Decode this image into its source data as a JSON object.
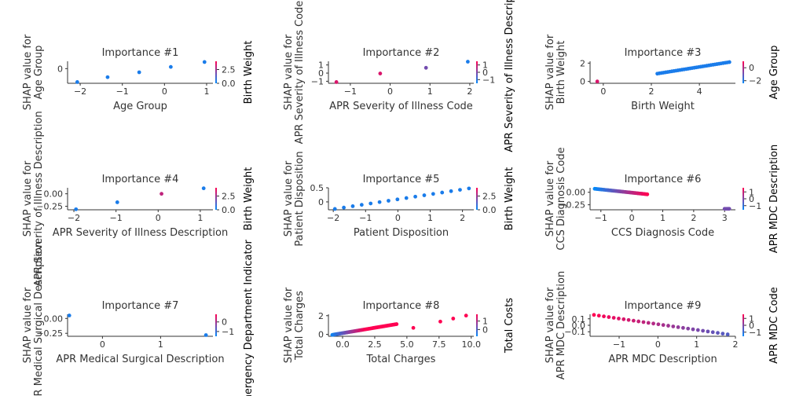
{
  "figure": {
    "colors": {
      "low": "#008afb",
      "high": "#ff0052",
      "axis": "#333333"
    }
  },
  "chart_data": [
    {
      "type": "scatter",
      "title": "Importance #1",
      "xlabel": "Age Group",
      "ylabel": "SHAP value for\nAge Group",
      "xlim": [
        -2.3,
        1.15
      ],
      "ylim": [
        -0.6,
        0.3
      ],
      "xticks": [
        -2,
        -1,
        0,
        1
      ],
      "yticks": [
        0
      ],
      "colorbar": {
        "label": "Birth Weight",
        "ticks": [
          "2.5",
          "0.0"
        ],
        "ticks_y": [
          2.5,
          0.0
        ],
        "range": [
          0.0,
          4.0
        ]
      },
      "points": [
        [
          -2.07,
          -0.55,
          0.1
        ],
        [
          -1.35,
          -0.35,
          0.1
        ],
        [
          -0.6,
          -0.15,
          0.1
        ],
        [
          0.15,
          0.07,
          0.1
        ],
        [
          0.95,
          0.27,
          0.1
        ]
      ]
    },
    {
      "type": "scatter",
      "title": "Importance #2",
      "xlabel": "APR Severity of Illness Code",
      "ylabel": "SHAP value for\nAPR Severity of Illness Code",
      "xlim": [
        -1.55,
        2.1
      ],
      "ylim": [
        -1.25,
        1.45
      ],
      "xticks": [
        -1,
        0,
        1,
        2
      ],
      "yticks": [
        1,
        0,
        -1
      ],
      "colorbar": {
        "label": "APR Severity of Illness Descript",
        "ticks": [
          "1",
          "0",
          "−1"
        ],
        "ticks_y": [
          1,
          0,
          -1
        ],
        "range": [
          -1.5,
          1.5
        ]
      },
      "points": [
        [
          -1.35,
          -1.1,
          0.85
        ],
        [
          -0.25,
          -0.05,
          0.85
        ],
        [
          0.9,
          0.65,
          0.45
        ],
        [
          1.95,
          1.4,
          0.1
        ]
      ]
    },
    {
      "type": "scatter",
      "title": "Importance #3",
      "xlabel": "Birth Weight",
      "ylabel": "SHAP value for\nBirth Weight",
      "xlim": [
        -0.55,
        5.5
      ],
      "ylim": [
        -0.2,
        2.2
      ],
      "xticks": [
        0,
        2,
        4
      ],
      "yticks": [
        2,
        0
      ],
      "colorbar": {
        "label": "Age Group",
        "ticks": [
          "0",
          "−2"
        ],
        "ticks_y": [
          0,
          -2
        ],
        "range": [
          -2.4,
          1.0
        ]
      },
      "points": "birthweight-line"
    },
    {
      "type": "scatter",
      "title": "Importance #4",
      "xlabel": "APR Severity of Illness Description",
      "ylabel": "SHAP value for\nAPR Severity of Illness Description",
      "xlim": [
        -2.15,
        1.3
      ],
      "ylim": [
        -0.32,
        0.12
      ],
      "xticks": [
        -2,
        -1,
        0,
        1
      ],
      "yticks": [
        0.0,
        -0.25
      ],
      "ytick_labels": [
        "0.00",
        "−0.25"
      ],
      "colorbar": {
        "label": "Birth Weight",
        "ticks": [
          "2.5",
          "0.0"
        ],
        "ticks_y": [
          2.5,
          0.0
        ],
        "range": [
          0.0,
          4.0
        ]
      },
      "points": [
        [
          -1.95,
          -0.31,
          0.1
        ],
        [
          -0.97,
          -0.17,
          0.1
        ],
        [
          0.08,
          0.0,
          0.75
        ],
        [
          1.08,
          0.11,
          0.1
        ]
      ]
    },
    {
      "type": "scatter",
      "title": "Importance #5",
      "xlabel": "Patient Disposition",
      "ylabel": "SHAP value for\nPatient Disposition",
      "xlim": [
        -2.15,
        2.35
      ],
      "ylim": [
        -0.28,
        0.5
      ],
      "xticks": [
        -2,
        -1,
        0,
        1,
        2
      ],
      "yticks": [
        0.5,
        0.0
      ],
      "colorbar": {
        "label": "Birth Weight",
        "ticks": [
          "2.5",
          "0.0"
        ],
        "ticks_y": [
          2.5,
          0.0
        ],
        "range": [
          0.0,
          4.0
        ]
      },
      "points": "disposition-line"
    },
    {
      "type": "scatter",
      "title": "Importance #6",
      "xlabel": "CCS Diagnosis Code",
      "ylabel": "SHAP value for\nCCS Diagnosis Code",
      "xlim": [
        -1.35,
        3.35
      ],
      "ylim": [
        -0.35,
        0.09
      ],
      "xticks": [
        -1,
        0,
        1,
        2,
        3
      ],
      "yticks": [
        0.0,
        -0.25
      ],
      "ytick_labels": [
        "0.00",
        "−0.25"
      ],
      "colorbar": {
        "label": "APR MDC Description",
        "ticks": [
          "1",
          "0",
          "−1"
        ],
        "ticks_y": [
          1,
          0,
          -1
        ],
        "range": [
          -1.6,
          1.6
        ]
      },
      "points": "ccs-line"
    },
    {
      "type": "scatter",
      "title": "Importance #7",
      "xlabel": "APR Medical Surgical Description",
      "ylabel": "SHAP value for\nAPR Medical Surgical Description",
      "xlim": [
        -0.6,
        1.9
      ],
      "ylim": [
        -0.3,
        0.07
      ],
      "xticks": [
        0,
        1
      ],
      "yticks": [
        0.0,
        -0.25
      ],
      "ytick_labels": [
        "0.00",
        "−0.25"
      ],
      "colorbar": {
        "label": "Emergency Department Indicator",
        "ticks": [
          "0",
          "−1"
        ],
        "ticks_y": [
          0,
          -1
        ],
        "range": [
          -1.5,
          0.8
        ]
      },
      "points": [
        [
          -0.57,
          0.05,
          0.1
        ],
        [
          1.78,
          -0.28,
          0.1
        ]
      ]
    },
    {
      "type": "scatter",
      "title": "Importance #8",
      "xlabel": "Total Charges",
      "ylabel": "SHAP value for\nTotal Charges",
      "xlim": [
        -1.1,
        10.2
      ],
      "ylim": [
        -0.2,
        2.15
      ],
      "xticks": [
        0,
        2.5,
        5,
        7.5,
        10
      ],
      "xtick_labels": [
        "0.0",
        "2.5",
        "5.0",
        "7.5",
        "10.0"
      ],
      "yticks": [
        2,
        0
      ],
      "colorbar": {
        "label": "Total Costs",
        "ticks": [
          "1",
          "0"
        ],
        "ticks_y": [
          1,
          0
        ],
        "range": [
          -0.8,
          1.8
        ]
      },
      "points": "charges-line"
    },
    {
      "type": "scatter",
      "title": "Importance #9",
      "xlabel": "APR MDC Description",
      "ylabel": "SHAP value for\nAPR MDC Description",
      "xlim": [
        -1.75,
        2.0
      ],
      "ylim": [
        -0.17,
        0.17
      ],
      "xticks": [
        -1,
        0,
        1,
        2
      ],
      "yticks": [
        0.1,
        0.0,
        -0.1
      ],
      "ytick_labels": [
        "0.1",
        "0.0",
        "−0.1"
      ],
      "colorbar": {
        "label": "APR MDC Code",
        "ticks": [
          "1",
          "0",
          "−1"
        ],
        "ticks_y": [
          1,
          0,
          -1
        ],
        "range": [
          -1.6,
          1.6
        ]
      },
      "points": "mdc-line"
    }
  ]
}
